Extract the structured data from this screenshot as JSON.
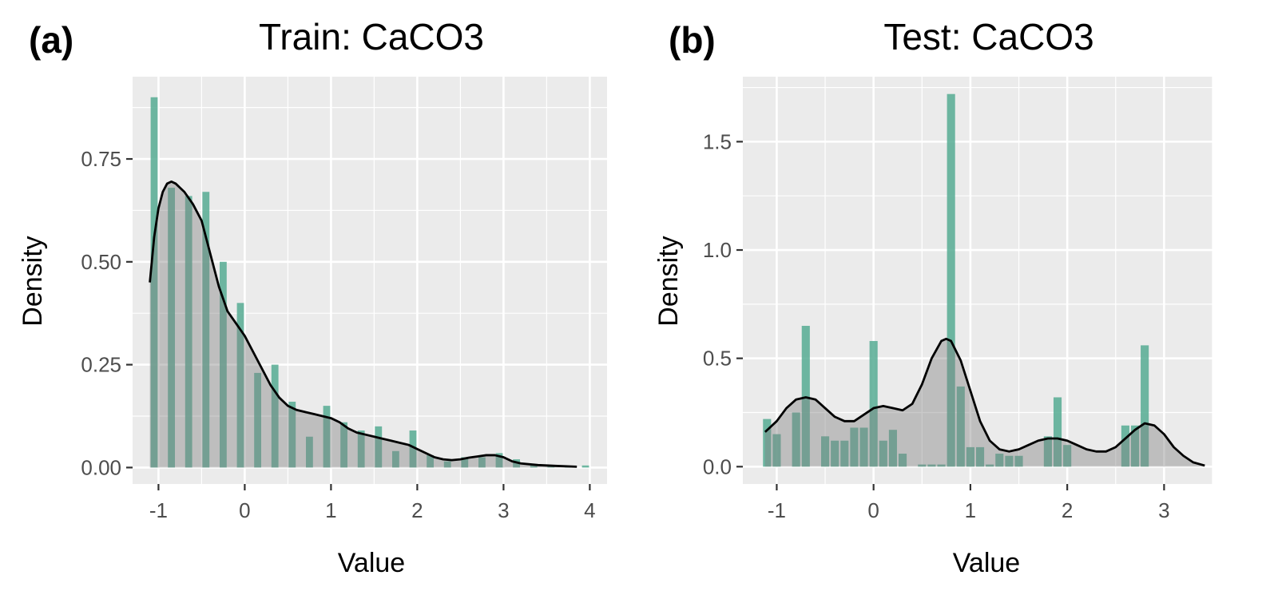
{
  "chart_data": [
    {
      "type": "bar",
      "panel_tag": "(a)",
      "title": "Train: CaCO3",
      "xlabel": "Value",
      "ylabel": "Density",
      "xlim": [
        -1.3,
        4.2
      ],
      "ylim": [
        -0.04,
        0.95
      ],
      "x_ticks": [
        -1,
        0,
        1,
        2,
        3,
        4
      ],
      "x_tick_labels": [
        "-1",
        "0",
        "1",
        "2",
        "3",
        "4"
      ],
      "y_ticks": [
        0.0,
        0.25,
        0.5,
        0.75
      ],
      "y_tick_labels": [
        "0.00",
        "0.25",
        "0.50",
        "0.75"
      ],
      "grid": true,
      "bin_width": 0.1,
      "histogram": {
        "x": [
          -1.05,
          -0.85,
          -0.65,
          -0.45,
          -0.25,
          -0.05,
          0.15,
          0.35,
          0.55,
          0.75,
          0.95,
          1.15,
          1.35,
          1.55,
          1.75,
          1.95,
          2.15,
          2.35,
          2.55,
          2.75,
          2.95,
          3.15,
          3.35,
          3.55,
          3.75,
          3.95
        ],
        "values": [
          0.9,
          0.68,
          0.66,
          0.67,
          0.5,
          0.4,
          0.23,
          0.25,
          0.16,
          0.075,
          0.15,
          0.11,
          0.09,
          0.1,
          0.04,
          0.09,
          0.03,
          0.015,
          0.025,
          0.025,
          0.035,
          0.02,
          0.008,
          0.004,
          0.004,
          0.005
        ]
      },
      "density": {
        "x": [
          -1.1,
          -1.05,
          -1.0,
          -0.95,
          -0.9,
          -0.85,
          -0.8,
          -0.75,
          -0.7,
          -0.65,
          -0.6,
          -0.5,
          -0.4,
          -0.3,
          -0.2,
          -0.1,
          0.0,
          0.1,
          0.2,
          0.3,
          0.4,
          0.5,
          0.6,
          0.7,
          0.8,
          0.9,
          1.0,
          1.1,
          1.2,
          1.3,
          1.4,
          1.5,
          1.6,
          1.7,
          1.8,
          1.9,
          2.0,
          2.1,
          2.2,
          2.3,
          2.4,
          2.5,
          2.6,
          2.7,
          2.8,
          2.9,
          3.0,
          3.1,
          3.2,
          3.4,
          3.6,
          3.85
        ],
        "values": [
          0.45,
          0.56,
          0.63,
          0.67,
          0.69,
          0.695,
          0.69,
          0.68,
          0.67,
          0.655,
          0.64,
          0.6,
          0.52,
          0.44,
          0.38,
          0.35,
          0.32,
          0.28,
          0.24,
          0.2,
          0.17,
          0.15,
          0.14,
          0.135,
          0.13,
          0.125,
          0.12,
          0.11,
          0.095,
          0.085,
          0.08,
          0.075,
          0.07,
          0.065,
          0.06,
          0.055,
          0.045,
          0.035,
          0.025,
          0.02,
          0.018,
          0.02,
          0.024,
          0.027,
          0.03,
          0.03,
          0.025,
          0.015,
          0.01,
          0.006,
          0.004,
          0.002
        ]
      },
      "colors": {
        "bars": "#4fa88f",
        "density_fill": "#808080",
        "density_line": "#000000",
        "panel_bg": "#ebebeb",
        "grid": "#ffffff"
      }
    },
    {
      "type": "bar",
      "panel_tag": "(b)",
      "title": "Test: CaCO3",
      "xlabel": "Value",
      "ylabel": "Density",
      "xlim": [
        -1.35,
        3.5
      ],
      "ylim": [
        -0.08,
        1.8
      ],
      "x_ticks": [
        -1,
        0,
        1,
        2,
        3
      ],
      "x_tick_labels": [
        "-1",
        "0",
        "1",
        "2",
        "3"
      ],
      "y_ticks": [
        0.0,
        0.5,
        1.0,
        1.5
      ],
      "y_tick_labels": [
        "0.0",
        "0.5",
        "1.0",
        "1.5"
      ],
      "grid": true,
      "bin_width": 0.1,
      "histogram": {
        "x": [
          -1.1,
          -1.0,
          -0.8,
          -0.7,
          -0.5,
          -0.4,
          -0.3,
          -0.2,
          -0.1,
          0.0,
          0.1,
          0.2,
          0.3,
          0.5,
          0.6,
          0.7,
          0.8,
          0.9,
          1.0,
          1.1,
          1.2,
          1.3,
          1.4,
          1.5,
          1.8,
          1.9,
          2.0,
          2.6,
          2.7,
          2.8,
          2.9
        ],
        "values": [
          0.22,
          0.15,
          0.25,
          0.65,
          0.14,
          0.12,
          0.12,
          0.18,
          0.18,
          0.58,
          0.12,
          0.17,
          0.06,
          0.01,
          0.01,
          0.01,
          1.72,
          0.37,
          0.09,
          0.09,
          0.01,
          0.06,
          0.05,
          0.05,
          0.14,
          0.32,
          0.1,
          0.19,
          0.19,
          0.56,
          0.0
        ]
      },
      "density": {
        "x": [
          -1.12,
          -1.0,
          -0.9,
          -0.8,
          -0.7,
          -0.6,
          -0.5,
          -0.4,
          -0.3,
          -0.2,
          -0.1,
          0.0,
          0.1,
          0.2,
          0.3,
          0.4,
          0.5,
          0.6,
          0.7,
          0.75,
          0.8,
          0.9,
          1.0,
          1.1,
          1.2,
          1.3,
          1.4,
          1.5,
          1.6,
          1.7,
          1.8,
          1.9,
          2.0,
          2.1,
          2.2,
          2.3,
          2.4,
          2.5,
          2.6,
          2.7,
          2.8,
          2.9,
          3.0,
          3.1,
          3.2,
          3.3,
          3.42
        ],
        "values": [
          0.16,
          0.21,
          0.27,
          0.31,
          0.32,
          0.31,
          0.27,
          0.23,
          0.21,
          0.21,
          0.24,
          0.27,
          0.28,
          0.27,
          0.26,
          0.29,
          0.38,
          0.5,
          0.58,
          0.59,
          0.58,
          0.49,
          0.35,
          0.21,
          0.12,
          0.08,
          0.07,
          0.08,
          0.1,
          0.12,
          0.13,
          0.13,
          0.12,
          0.1,
          0.08,
          0.07,
          0.07,
          0.09,
          0.13,
          0.17,
          0.2,
          0.19,
          0.15,
          0.09,
          0.05,
          0.02,
          0.005
        ]
      },
      "colors": {
        "bars": "#4fa88f",
        "density_fill": "#808080",
        "density_line": "#000000",
        "panel_bg": "#ebebeb",
        "grid": "#ffffff"
      }
    }
  ]
}
